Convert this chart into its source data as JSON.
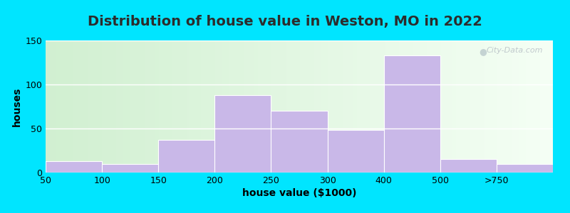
{
  "title": "Distribution of house value in Weston, MO in 2022",
  "xlabel": "house value ($1000)",
  "ylabel": "houses",
  "categories": [
    "50",
    "100",
    "150",
    "200",
    "250",
    "300",
    "400",
    "500",
    ">750"
  ],
  "bin_edges": [
    0,
    1,
    2,
    3,
    4,
    5,
    6,
    7,
    8,
    9
  ],
  "values": [
    13,
    10,
    37,
    88,
    70,
    48,
    133,
    15,
    10
  ],
  "bar_color": "#c9b8e8",
  "bar_edgecolor": "#ffffff",
  "ylim": [
    0,
    150
  ],
  "yticks": [
    0,
    50,
    100,
    150
  ],
  "outer_bg": "#00e5ff",
  "watermark": "City-Data.com",
  "title_fontsize": 14,
  "axis_fontsize": 10,
  "tick_fontsize": 9
}
